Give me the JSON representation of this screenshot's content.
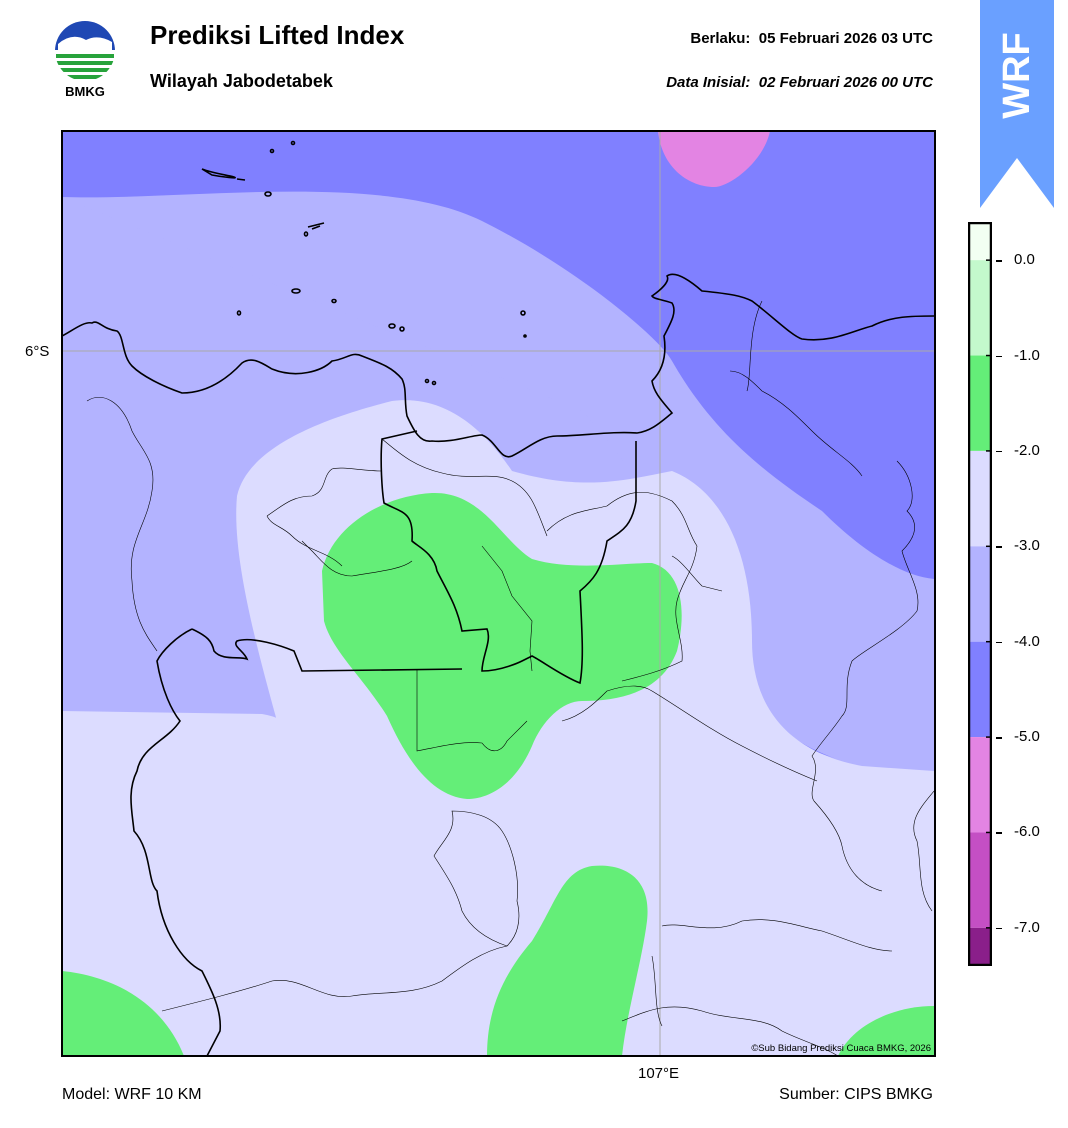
{
  "header": {
    "logo_text": "BMKG",
    "title": "Prediksi Lifted Index",
    "subtitle": "Wilayah Jabodetabek",
    "valid_label": "Berlaku:",
    "valid_time": "05 Februari 2026 03 UTC",
    "init_label": "Data Inisial:",
    "init_time": "02 Februari 2026 00 UTC"
  },
  "badge": {
    "text": "WRF",
    "color": "#6aa0ff"
  },
  "map": {
    "lat_label": "6°S",
    "lon_label": "107°E",
    "credit": "©Sub Bidang Prediksi Cuaca BMKG, 2026",
    "field_colors": {
      "-6_-5": "#e384e3",
      "-5_-4": "#8080ff",
      "-4_-3": "#b3b3ff",
      "-3_-2": "#dcdcff",
      "-2_-1": "#64ee78"
    }
  },
  "colorbar": {
    "ticks": [
      "0.0",
      "-1.0",
      "-2.0",
      "-3.0",
      "-4.0",
      "-5.0",
      "-6.0",
      "-7.0"
    ],
    "tick_values": [
      0,
      -1,
      -2,
      -3,
      -4,
      -5,
      -6,
      -7
    ],
    "segments": [
      {
        "from": 0.4,
        "to": 0.0,
        "color": "#f2fff2"
      },
      {
        "from": 0.0,
        "to": -1.0,
        "color": "#c3f9cc"
      },
      {
        "from": -1.0,
        "to": -2.0,
        "color": "#64ee78"
      },
      {
        "from": -2.0,
        "to": -3.0,
        "color": "#dcdcff"
      },
      {
        "from": -3.0,
        "to": -4.0,
        "color": "#b3b3ff"
      },
      {
        "from": -4.0,
        "to": -5.0,
        "color": "#8080ff"
      },
      {
        "from": -5.0,
        "to": -6.0,
        "color": "#e384e3"
      },
      {
        "from": -6.0,
        "to": -7.0,
        "color": "#c44fc4"
      },
      {
        "from": -7.0,
        "to": -7.4,
        "color": "#8a1f8a"
      }
    ]
  },
  "footer": {
    "model": "Model: WRF 10 KM",
    "source": "Sumber: CIPS BMKG"
  }
}
